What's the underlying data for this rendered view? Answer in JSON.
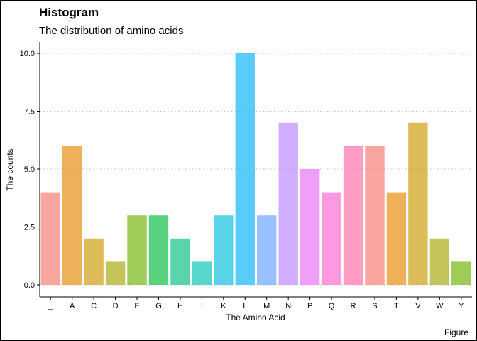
{
  "chart_data": {
    "type": "bar",
    "title": "Histogram",
    "subtitle": "The distribution of amino acids",
    "xlabel": "The Amino Acid",
    "ylabel": "The counts",
    "caption": "Figure",
    "categories": [
      "_",
      "A",
      "C",
      "D",
      "E",
      "G",
      "H",
      "I",
      "K",
      "L",
      "M",
      "N",
      "P",
      "Q",
      "R",
      "S",
      "T",
      "V",
      "W",
      "Y"
    ],
    "values": [
      4,
      6,
      2,
      1,
      3,
      3,
      2,
      1,
      3,
      10,
      3,
      7,
      5,
      4,
      6,
      6,
      4,
      7,
      2,
      1
    ],
    "colors": [
      "#F8766D",
      "#E58700",
      "#C99800",
      "#A3A500",
      "#6BB100",
      "#00BA38",
      "#00BF7D",
      "#00C0AF",
      "#00BCD8",
      "#00B0F6",
      "#619CFF",
      "#B983FF",
      "#E76BF3",
      "#FD61D1",
      "#FF67A4",
      "#F8766D",
      "#E58700",
      "#C99800",
      "#A3A500",
      "#6BB100"
    ],
    "bar_opacity": 0.65,
    "ylim": [
      0,
      10.5
    ],
    "yticks": [
      0,
      2.5,
      5,
      7.5,
      10
    ],
    "ytick_labels": [
      "0.0",
      "2.5",
      "5.0",
      "7.5",
      "10.0"
    ],
    "grid": "horizontal dotted",
    "legend": "none"
  }
}
